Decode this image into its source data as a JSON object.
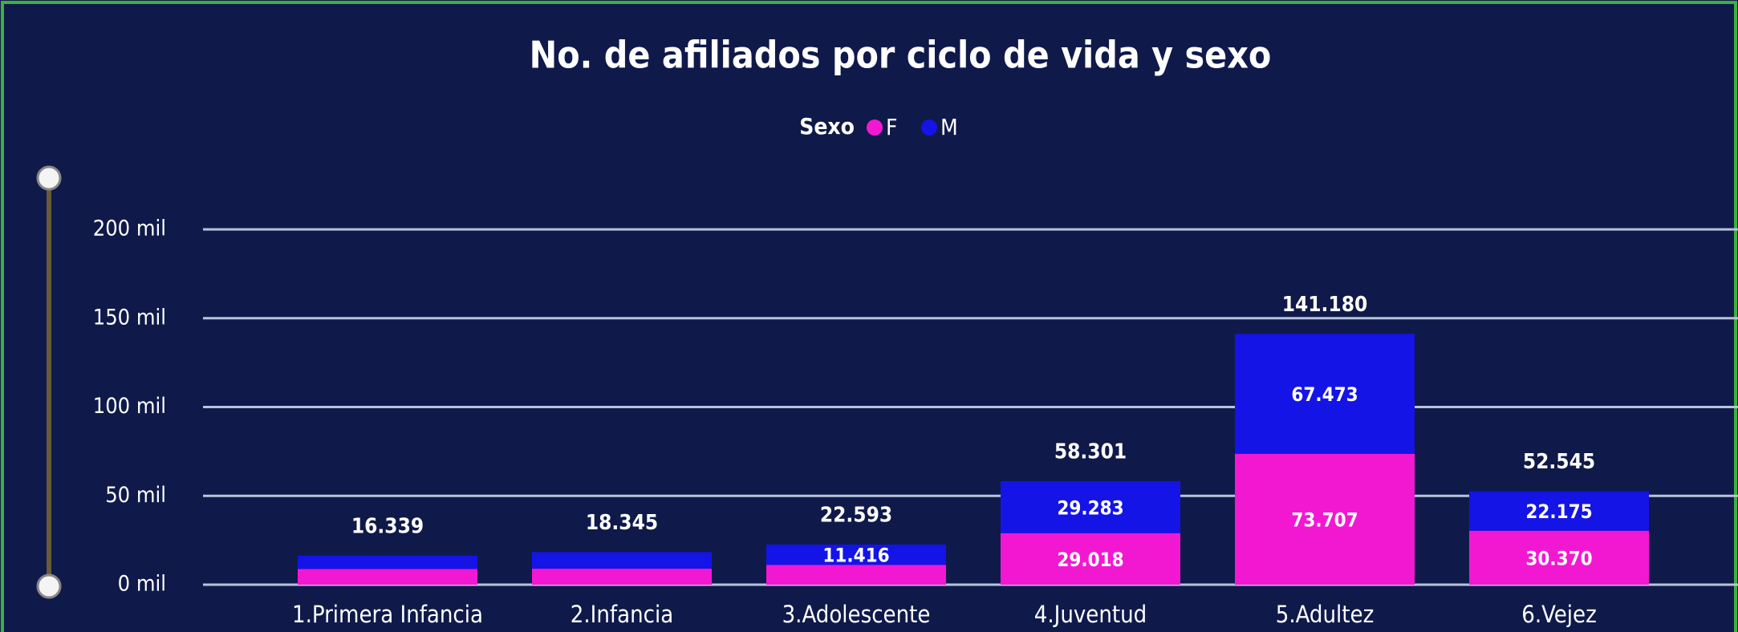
{
  "chart_data": {
    "type": "stacked_bar",
    "title": "No. de afiliados por ciclo de vida y sexo",
    "legend_title": "Sexo",
    "categories": [
      "1.Primera Infancia",
      "2.Infancia",
      "3.Adolescente",
      "4.Juventud",
      "5.Adultez",
      "6.Vejez"
    ],
    "series": [
      {
        "name": "F",
        "color": "#f218d2",
        "values": [
          8800,
          9000,
          11177,
          29018,
          73707,
          30370
        ],
        "value_labels": [
          null,
          null,
          null,
          "29.018",
          "73.707",
          "30.370"
        ]
      },
      {
        "name": "M",
        "color": "#1414e6",
        "values": [
          7539,
          9345,
          11416,
          29283,
          67473,
          22175
        ],
        "value_labels": [
          null,
          null,
          "11.416",
          "29.283",
          "67.473",
          "22.175"
        ]
      }
    ],
    "totals": {
      "values": [
        16339,
        18345,
        22593,
        58301,
        141180,
        52545
      ],
      "value_labels": [
        "16.339",
        "18.345",
        "22.593",
        "58.301",
        "141.180",
        "52.545"
      ]
    },
    "ylim": [
      0,
      200000
    ],
    "yticks": [
      {
        "value": 0,
        "label": "0 mil"
      },
      {
        "value": 50000,
        "label": "50 mil"
      },
      {
        "value": 100000,
        "label": "100 mil"
      },
      {
        "value": 150000,
        "label": "150 mil"
      },
      {
        "value": 200000,
        "label": "200 mil"
      }
    ],
    "grid": true,
    "legend": "top"
  }
}
